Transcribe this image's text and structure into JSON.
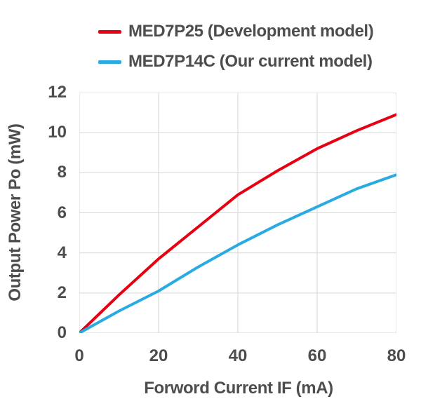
{
  "chart_data": {
    "type": "line",
    "title": "",
    "xlabel": "Forword Current IF (mA)",
    "ylabel": "Output Power Po (mW)",
    "xlim": [
      0,
      80
    ],
    "ylim": [
      0,
      12
    ],
    "x_ticks": [
      0,
      20,
      40,
      60,
      80
    ],
    "y_ticks": [
      0,
      2,
      4,
      6,
      8,
      10,
      12
    ],
    "grid": true,
    "grid_color": "#d6d6d6",
    "legend_position": "top",
    "text_color": "#4d4d4d",
    "x": [
      0,
      10,
      20,
      30,
      40,
      50,
      60,
      70,
      80
    ],
    "series": [
      {
        "name": "MED7P25 (Development model)",
        "slug": "med7p25",
        "color": "#e60012",
        "values": [
          0,
          1.9,
          3.7,
          5.3,
          6.9,
          8.1,
          9.2,
          10.1,
          10.9
        ]
      },
      {
        "name": "MED7P14C (Our current model)",
        "slug": "med7p14c",
        "color": "#29abe2",
        "values": [
          0,
          1.1,
          2.1,
          3.3,
          4.4,
          5.4,
          6.3,
          7.2,
          7.9
        ]
      }
    ]
  }
}
